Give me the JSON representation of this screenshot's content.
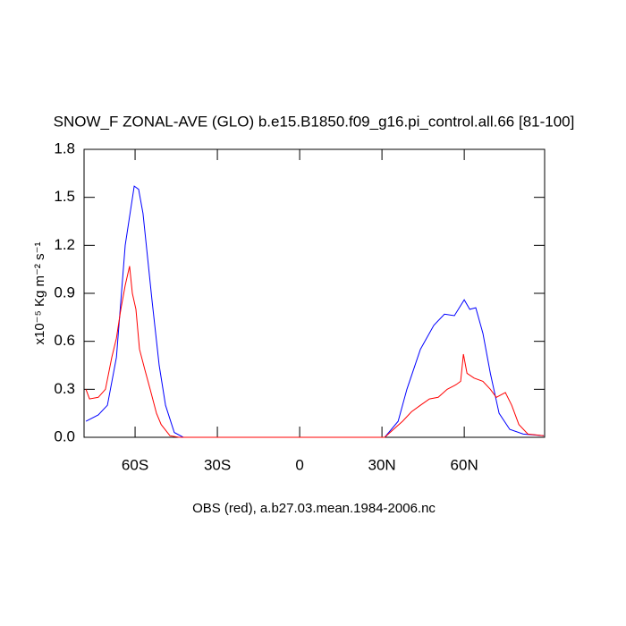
{
  "chart_data": {
    "type": "line",
    "title": "SNOW_F ZONAL-AVE (GLO) b.e15.B1850.f09_g16.pi_control.all.66 [81-100]",
    "ylabel": "x10⁻⁵ Kg m⁻² s⁻¹",
    "xlabel": "OBS (red), a.b27.03.mean.1984-2006.nc",
    "xlim": [
      -78.6,
      89.3
    ],
    "ylim": [
      0,
      1.8
    ],
    "xticks": [
      {
        "value": -60,
        "label": "60S"
      },
      {
        "value": -30,
        "label": "30S"
      },
      0,
      {
        "value": 30,
        "label": "30N"
      },
      {
        "value": 60,
        "label": "60N"
      }
    ],
    "yticks": [
      {
        "value": 0,
        "label": "0.0"
      },
      0.3,
      0.6,
      0.9,
      1.2,
      1.5,
      1.8
    ],
    "series": [
      {
        "color": "#0000ff",
        "x": [
          -77.9,
          -73.4,
          -70.1,
          -66.8,
          -63.6,
          -60.3,
          -58.7,
          -57.1,
          -53.8,
          -51.2,
          -48.9,
          -45.7,
          -42.4,
          -11.4,
          31.0,
          35.9,
          39.1,
          44.0,
          48.9,
          52.8,
          56.4,
          60.0,
          62.0,
          64.2,
          66.8,
          69.5,
          72.7,
          76.6,
          81.5,
          89.0
        ],
        "values": [
          0.1,
          0.14,
          0.2,
          0.5,
          1.2,
          1.57,
          1.55,
          1.4,
          0.85,
          0.45,
          0.2,
          0.03,
          0.0,
          0.0,
          0.0,
          0.1,
          0.3,
          0.55,
          0.7,
          0.77,
          0.76,
          0.86,
          0.8,
          0.81,
          0.65,
          0.4,
          0.15,
          0.05,
          0.02,
          0.01
        ]
      },
      {
        "color": "#ff0000",
        "x": [
          -77.9,
          -76.6,
          -73.4,
          -70.8,
          -68.5,
          -66.8,
          -65.2,
          -63.6,
          -62.0,
          -61.0,
          -59.7,
          -58.4,
          -56.4,
          -54.5,
          -52.2,
          -50.5,
          -47.3,
          -44.0,
          -11.4,
          31.0,
          34.2,
          37.5,
          40.8,
          44.0,
          47.3,
          50.5,
          53.8,
          57.1,
          58.7,
          59.7,
          61.0,
          63.6,
          66.8,
          69.5,
          71.7,
          75.0,
          77.3,
          79.9,
          83.2,
          89.0
        ],
        "values": [
          0.3,
          0.24,
          0.25,
          0.3,
          0.5,
          0.62,
          0.8,
          0.95,
          1.07,
          0.9,
          0.8,
          0.55,
          0.42,
          0.3,
          0.15,
          0.08,
          0.01,
          0.0,
          0.0,
          0.0,
          0.05,
          0.1,
          0.16,
          0.2,
          0.24,
          0.25,
          0.3,
          0.33,
          0.35,
          0.52,
          0.4,
          0.37,
          0.35,
          0.3,
          0.25,
          0.28,
          0.2,
          0.08,
          0.02,
          0.01
        ]
      }
    ]
  }
}
